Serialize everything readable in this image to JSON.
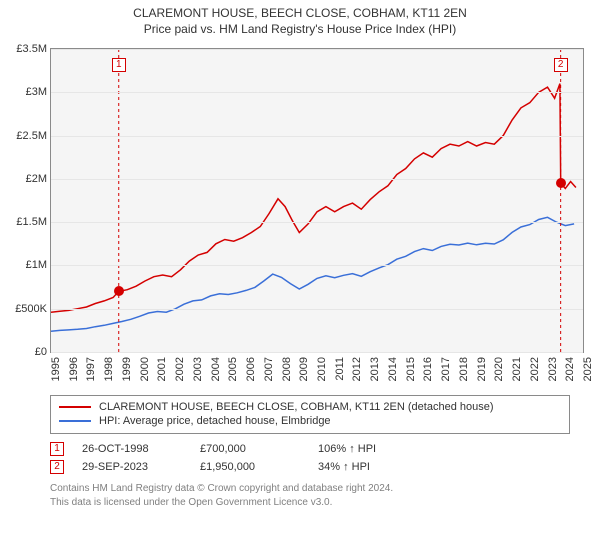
{
  "chart": {
    "title_line1": "CLAREMONT HOUSE, BEECH CLOSE, COBHAM, KT11 2EN",
    "title_line2": "Price paid vs. HM Land Registry's House Price Index (HPI)",
    "type": "line",
    "background_color": "#f5f5f5",
    "grid_color": "#e6e6e6",
    "border_color": "#8a8a8a",
    "x": {
      "min": 1995,
      "max": 2025,
      "ticks": [
        1995,
        1996,
        1997,
        1998,
        1999,
        2000,
        2001,
        2002,
        2003,
        2004,
        2005,
        2006,
        2007,
        2008,
        2009,
        2010,
        2011,
        2012,
        2013,
        2014,
        2015,
        2016,
        2017,
        2018,
        2019,
        2020,
        2021,
        2022,
        2023,
        2024,
        2025
      ],
      "tick_fontsize": 11
    },
    "y": {
      "min": 0,
      "max": 3500000,
      "ticks": [
        0,
        500000,
        1000000,
        1500000,
        2000000,
        2500000,
        3000000,
        3500000
      ],
      "tick_labels": [
        "£0",
        "£500K",
        "£1M",
        "£1.5M",
        "£2M",
        "£2.5M",
        "£3M",
        "£3.5M"
      ],
      "tick_fontsize": 11
    },
    "series": [
      {
        "name": "CLAREMONT HOUSE, BEECH CLOSE, COBHAM, KT11 2EN (detached house)",
        "color": "#d40000",
        "line_width": 1.5,
        "points": [
          [
            1995.0,
            460000
          ],
          [
            1995.5,
            470000
          ],
          [
            1996.0,
            480000
          ],
          [
            1996.5,
            500000
          ],
          [
            1997.0,
            520000
          ],
          [
            1997.5,
            560000
          ],
          [
            1998.0,
            590000
          ],
          [
            1998.5,
            630000
          ],
          [
            1998.82,
            700000
          ],
          [
            1999.3,
            720000
          ],
          [
            1999.8,
            760000
          ],
          [
            2000.3,
            820000
          ],
          [
            2000.8,
            870000
          ],
          [
            2001.3,
            890000
          ],
          [
            2001.8,
            870000
          ],
          [
            2002.3,
            950000
          ],
          [
            2002.8,
            1050000
          ],
          [
            2003.3,
            1120000
          ],
          [
            2003.8,
            1150000
          ],
          [
            2004.3,
            1250000
          ],
          [
            2004.8,
            1300000
          ],
          [
            2005.3,
            1280000
          ],
          [
            2005.8,
            1320000
          ],
          [
            2006.3,
            1380000
          ],
          [
            2006.8,
            1450000
          ],
          [
            2007.3,
            1600000
          ],
          [
            2007.8,
            1770000
          ],
          [
            2008.2,
            1680000
          ],
          [
            2008.6,
            1520000
          ],
          [
            2009.0,
            1380000
          ],
          [
            2009.5,
            1480000
          ],
          [
            2010.0,
            1620000
          ],
          [
            2010.5,
            1680000
          ],
          [
            2011.0,
            1620000
          ],
          [
            2011.5,
            1680000
          ],
          [
            2012.0,
            1720000
          ],
          [
            2012.5,
            1650000
          ],
          [
            2013.0,
            1760000
          ],
          [
            2013.5,
            1850000
          ],
          [
            2014.0,
            1920000
          ],
          [
            2014.5,
            2050000
          ],
          [
            2015.0,
            2120000
          ],
          [
            2015.5,
            2230000
          ],
          [
            2016.0,
            2300000
          ],
          [
            2016.5,
            2250000
          ],
          [
            2017.0,
            2350000
          ],
          [
            2017.5,
            2400000
          ],
          [
            2018.0,
            2380000
          ],
          [
            2018.5,
            2430000
          ],
          [
            2019.0,
            2380000
          ],
          [
            2019.5,
            2420000
          ],
          [
            2020.0,
            2400000
          ],
          [
            2020.5,
            2500000
          ],
          [
            2021.0,
            2680000
          ],
          [
            2021.5,
            2820000
          ],
          [
            2022.0,
            2880000
          ],
          [
            2022.5,
            3000000
          ],
          [
            2023.0,
            3060000
          ],
          [
            2023.4,
            2930000
          ],
          [
            2023.7,
            3100000
          ],
          [
            2023.74,
            1950000
          ],
          [
            2024.0,
            1890000
          ],
          [
            2024.3,
            1970000
          ],
          [
            2024.6,
            1900000
          ]
        ]
      },
      {
        "name": "HPI: Average price, detached house, Elmbridge",
        "color": "#3a6fd8",
        "line_width": 1.5,
        "points": [
          [
            1995.0,
            240000
          ],
          [
            1995.5,
            250000
          ],
          [
            1996.0,
            255000
          ],
          [
            1996.5,
            262000
          ],
          [
            1997.0,
            272000
          ],
          [
            1997.5,
            292000
          ],
          [
            1998.0,
            308000
          ],
          [
            1998.5,
            330000
          ],
          [
            1999.0,
            352000
          ],
          [
            1999.5,
            378000
          ],
          [
            2000.0,
            412000
          ],
          [
            2000.5,
            450000
          ],
          [
            2001.0,
            468000
          ],
          [
            2001.5,
            460000
          ],
          [
            2002.0,
            498000
          ],
          [
            2002.5,
            552000
          ],
          [
            2003.0,
            590000
          ],
          [
            2003.5,
            602000
          ],
          [
            2004.0,
            648000
          ],
          [
            2004.5,
            672000
          ],
          [
            2005.0,
            664000
          ],
          [
            2005.5,
            684000
          ],
          [
            2006.0,
            712000
          ],
          [
            2006.5,
            746000
          ],
          [
            2007.0,
            820000
          ],
          [
            2007.5,
            900000
          ],
          [
            2008.0,
            862000
          ],
          [
            2008.5,
            790000
          ],
          [
            2009.0,
            728000
          ],
          [
            2009.5,
            782000
          ],
          [
            2010.0,
            850000
          ],
          [
            2010.5,
            880000
          ],
          [
            2011.0,
            858000
          ],
          [
            2011.5,
            886000
          ],
          [
            2012.0,
            906000
          ],
          [
            2012.5,
            874000
          ],
          [
            2013.0,
            928000
          ],
          [
            2013.5,
            972000
          ],
          [
            2014.0,
            1008000
          ],
          [
            2014.5,
            1072000
          ],
          [
            2015.0,
            1106000
          ],
          [
            2015.5,
            1160000
          ],
          [
            2016.0,
            1194000
          ],
          [
            2016.5,
            1172000
          ],
          [
            2017.0,
            1220000
          ],
          [
            2017.5,
            1244000
          ],
          [
            2018.0,
            1236000
          ],
          [
            2018.5,
            1258000
          ],
          [
            2019.0,
            1238000
          ],
          [
            2019.5,
            1256000
          ],
          [
            2020.0,
            1248000
          ],
          [
            2020.5,
            1296000
          ],
          [
            2021.0,
            1382000
          ],
          [
            2021.5,
            1444000
          ],
          [
            2022.0,
            1472000
          ],
          [
            2022.5,
            1530000
          ],
          [
            2023.0,
            1556000
          ],
          [
            2023.5,
            1500000
          ],
          [
            2024.0,
            1460000
          ],
          [
            2024.5,
            1480000
          ]
        ]
      }
    ],
    "markers": [
      {
        "num": "1",
        "x": 1998.82,
        "y_point": 700000,
        "color": "#d40000",
        "box_y": 3400000
      },
      {
        "num": "2",
        "x": 2023.74,
        "y_point": 1950000,
        "color": "#d40000",
        "box_y": 3400000
      }
    ],
    "legend": {
      "border_color": "#8a8a8a",
      "fontsize": 11
    },
    "transactions": [
      {
        "num": "1",
        "color": "#d40000",
        "date": "26-OCT-1998",
        "price": "£700,000",
        "pct": "106% ↑ HPI"
      },
      {
        "num": "2",
        "color": "#d40000",
        "date": "29-SEP-2023",
        "price": "£1,950,000",
        "pct": "34% ↑ HPI"
      }
    ],
    "footer_line1": "Contains HM Land Registry data © Crown copyright and database right 2024.",
    "footer_line2": "This data is licensed under the Open Government Licence v3.0.",
    "footer_color": "#808080"
  }
}
